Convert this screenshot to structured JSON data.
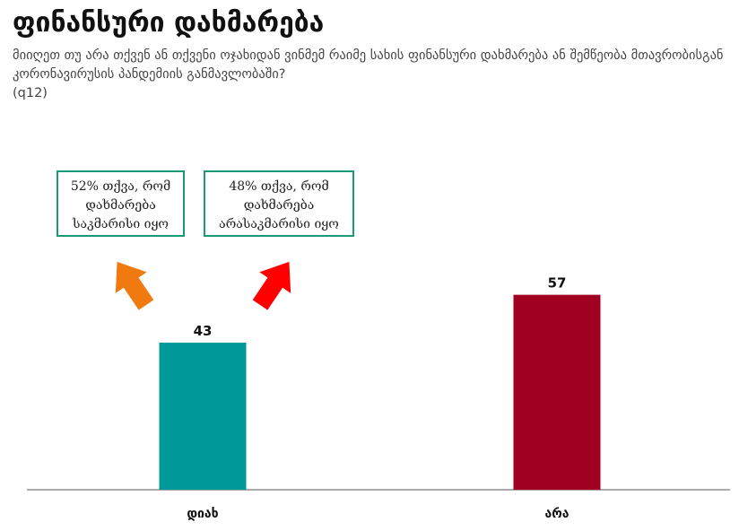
{
  "title": "ფინანსური დახმარება",
  "question": "მიიღეთ თუ არა თქვენ ან თქვენი ოჯახიდან ვინმემ რაიმე სახის ფინანსური დახმარება ან შემწეობა მთავრობისგან კორონავირუსის პანდემიის განმავლობაში?",
  "question_code": "(q12)",
  "notes": [
    {
      "text": "52% თქვა, რომ დახმარება საკმარისი იყო",
      "arrow_color": "#f07a10"
    },
    {
      "text": "48% თქვა, რომ დახმარება არასაკმარისი იყო",
      "arrow_color": "#ff0000"
    }
  ],
  "chart_data": {
    "type": "bar",
    "categories": [
      "დიახ",
      "არა"
    ],
    "values": [
      43,
      57
    ],
    "colors": [
      "#009999",
      "#a00022"
    ],
    "ylim": [
      0,
      75
    ],
    "grid": false,
    "data_labels": true
  }
}
